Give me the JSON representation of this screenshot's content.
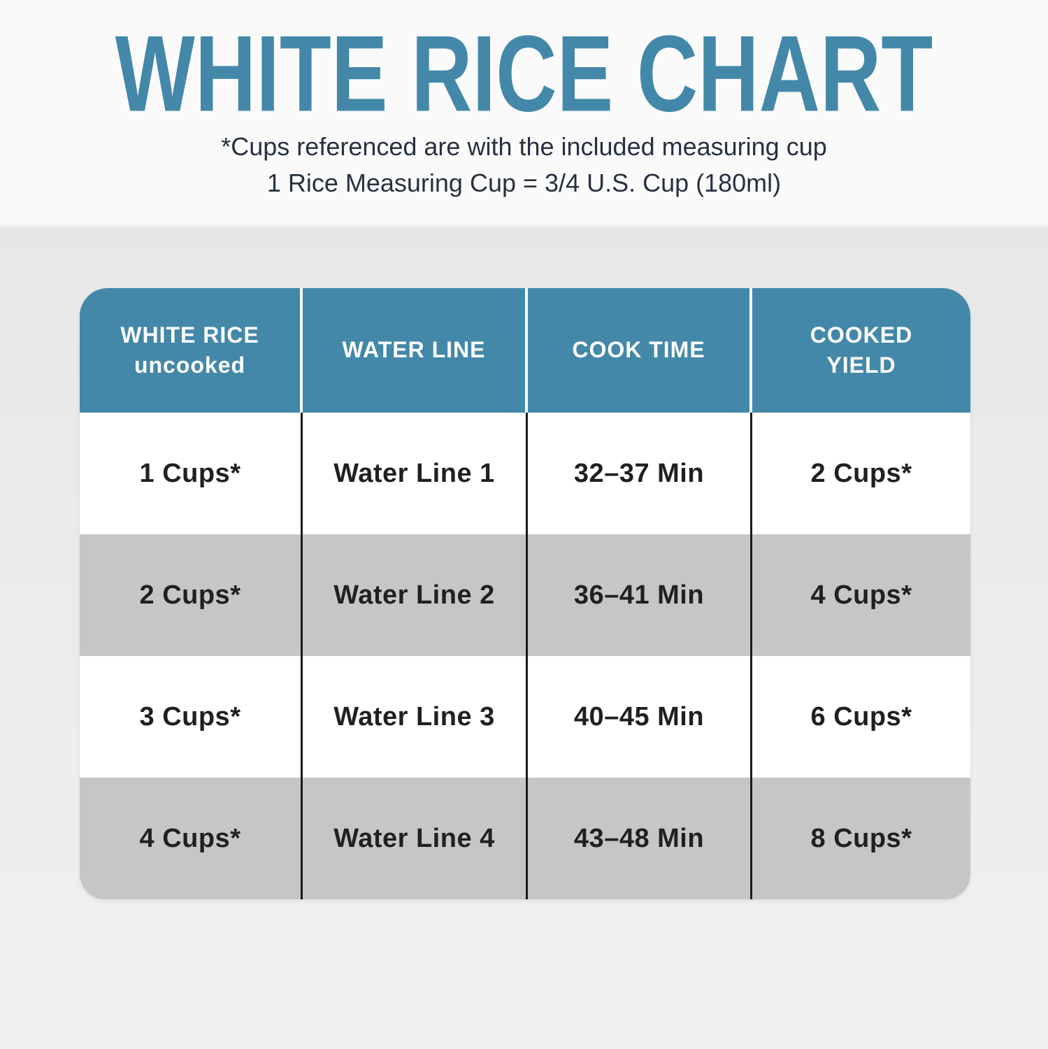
{
  "page": {
    "title": "WHITE RICE CHART",
    "subtitle_line1": "*Cups referenced are with the included measuring cup",
    "subtitle_line2": "1 Rice Measuring Cup = 3/4 U.S. Cup (180ml)"
  },
  "colors": {
    "accent_teal": "#4388a9",
    "header_text": "#ffffff",
    "row_white": "#ffffff",
    "row_gray": "#c7c6c6",
    "body_text": "#231f20",
    "body_divider": "#1c1917",
    "subtitle_text": "#273140",
    "bg_top": "#fafafa",
    "bg_bottom": "#f1f0ef"
  },
  "table_headers": [
    {
      "line1": "WHITE RICE",
      "line2": "uncooked"
    },
    {
      "line1": "WATER LINE"
    },
    {
      "line1": "COOK TIME"
    },
    {
      "line1": "COOKED",
      "line2": "YIELD"
    }
  ],
  "chart_data": {
    "type": "table",
    "title": "WHITE RICE CHART",
    "notes": [
      "*Cups referenced are with the included measuring cup",
      "1 Rice Measuring Cup = 3/4 U.S. Cup (180ml)"
    ],
    "columns": [
      "WHITE RICE uncooked",
      "WATER LINE",
      "COOK TIME",
      "COOKED YIELD"
    ],
    "rows": [
      [
        "1 Cups*",
        "Water Line 1",
        "32–37 Min",
        "2 Cups*"
      ],
      [
        "2 Cups*",
        "Water Line 2",
        "36–41 Min",
        "4 Cups*"
      ],
      [
        "3 Cups*",
        "Water Line 3",
        "40–45 Min",
        "6 Cups*"
      ],
      [
        "4 Cups*",
        "Water Line 4",
        "43–48 Min",
        "8 Cups*"
      ]
    ],
    "row_stripe_colors": [
      "#ffffff",
      "#c7c6c6"
    ],
    "legend_position": "none",
    "grid": "column-dividers-only"
  }
}
